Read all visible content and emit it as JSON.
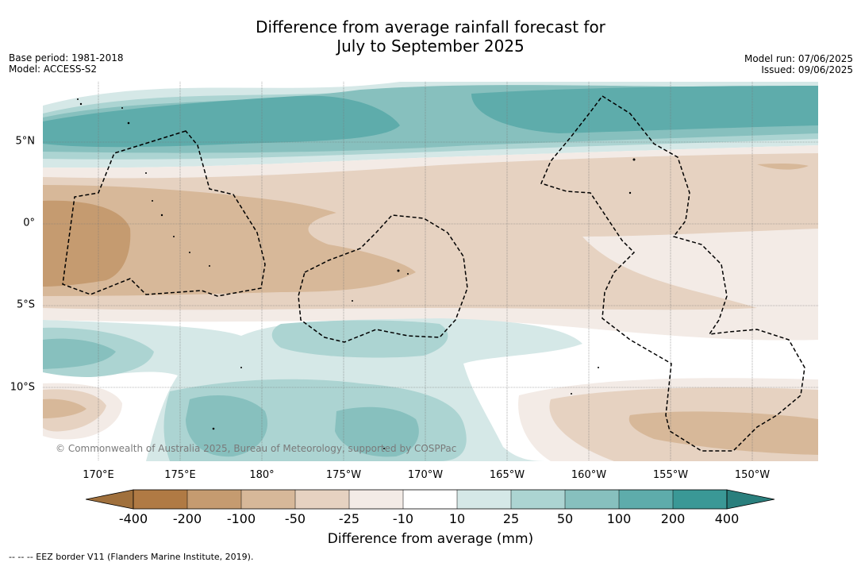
{
  "title": {
    "line1": "Difference from average rainfall forecast for",
    "line2": "July to September 2025"
  },
  "meta_left": {
    "base_period": "Base period: 1981-2018",
    "model": "Model: ACCESS-S2"
  },
  "meta_right": {
    "model_run": "Model run: 07/06/2025",
    "issued": "Issued: 09/06/2025"
  },
  "map": {
    "longitude_labels": [
      "170°E",
      "175°E",
      "180°",
      "175°W",
      "170°W",
      "165°W",
      "160°W",
      "155°W",
      "150°W"
    ],
    "latitude_labels": [
      "5°N",
      "0°",
      "5°S",
      "10°S"
    ],
    "credit": "© Commonwealth of Australia 2025, Bureau of Meteorology, supported by COSPPac",
    "colors": {
      "neg400": "#a0703c",
      "neg200": "#b07a44",
      "neg100": "#c59b70",
      "neg50": "#d7b899",
      "neg25": "#e6d2c1",
      "neg10": "#f3ebe6",
      "zero": "#ffffff",
      "pos10": "#d5e8e7",
      "pos25": "#acd4d2",
      "pos50": "#87c0be",
      "pos100": "#5eacab",
      "pos200": "#3a9896",
      "pos400": "#2a7f7d"
    }
  },
  "colorbar": {
    "ticks": [
      "-400",
      "-200",
      "-100",
      "-50",
      "-25",
      "-10",
      "10",
      "25",
      "50",
      "100",
      "200",
      "400"
    ],
    "label": "Difference from average (mm)"
  },
  "footnote": "--  --  -- EEZ border V11 (Flanders Marine Institute, 2019)."
}
